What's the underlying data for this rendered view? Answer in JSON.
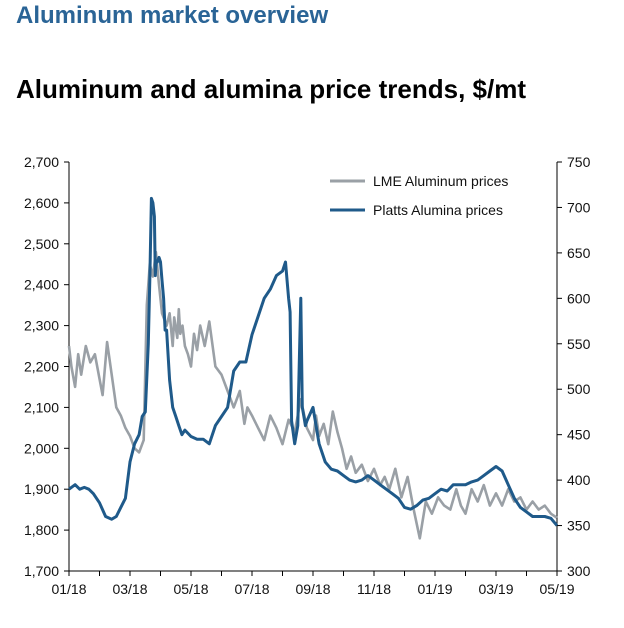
{
  "header": {
    "section_title": "Aluminum market overview"
  },
  "chart_data": {
    "type": "line",
    "title": "Aluminum and alumina price trends, $/mt",
    "x_tick_labels": [
      "01/18",
      "03/18",
      "05/18",
      "07/18",
      "09/18",
      "11/18",
      "01/19",
      "03/19",
      "05/19"
    ],
    "y_left": {
      "ylim": [
        1700,
        2700
      ],
      "ticks": [
        1700,
        1800,
        1900,
        2000,
        2100,
        2200,
        2300,
        2400,
        2500,
        2600,
        2700
      ],
      "tick_labels": [
        "1,700",
        "1,800",
        "1,900",
        "2,000",
        "2,100",
        "2,200",
        "2,300",
        "2,400",
        "2,500",
        "2,600",
        "2,700"
      ]
    },
    "y_right": {
      "ylim": [
        300,
        750
      ],
      "ticks": [
        300,
        350,
        400,
        450,
        500,
        550,
        600,
        650,
        700,
        750
      ],
      "tick_labels": [
        "300",
        "350",
        "400",
        "450",
        "500",
        "550",
        "600",
        "650",
        "700",
        "750"
      ]
    },
    "legend_position": "top-right",
    "grid": false,
    "colors": {
      "aluminum": "#9aa0a6",
      "alumina": "#1f5a8a"
    },
    "series": [
      {
        "name": "LME Aluminum prices",
        "axis": "left",
        "x": [
          0,
          0.08,
          0.2,
          0.3,
          0.4,
          0.55,
          0.7,
          0.85,
          1.0,
          1.1,
          1.25,
          1.4,
          1.55,
          1.7,
          1.85,
          2.0,
          2.15,
          2.3,
          2.45,
          2.55,
          2.65,
          2.75,
          2.85,
          2.95,
          3.05,
          3.2,
          3.3,
          3.4,
          3.45,
          3.55,
          3.6,
          3.65,
          3.72,
          3.8,
          3.9,
          4.0,
          4.1,
          4.2,
          4.3,
          4.45,
          4.6,
          4.8,
          5.0,
          5.2,
          5.4,
          5.6,
          5.75,
          5.85,
          6.0,
          6.2,
          6.4,
          6.6,
          6.8,
          7.0,
          7.2,
          7.4,
          7.6,
          7.8,
          8.0,
          8.1,
          8.2,
          8.35,
          8.5,
          8.65,
          8.8,
          8.95,
          9.1,
          9.25,
          9.4,
          9.6,
          9.8,
          10.0,
          10.2,
          10.35,
          10.5,
          10.7,
          10.9,
          11.1,
          11.3,
          11.5,
          11.7,
          11.9,
          12.1,
          12.3,
          12.5,
          12.7,
          12.85,
          13.0,
          13.2,
          13.4,
          13.6,
          13.8,
          14.0,
          14.2,
          14.4,
          14.6,
          14.8,
          15.0,
          15.2,
          15.4,
          15.6,
          15.8,
          16.0
        ],
        "y": [
          2250,
          2200,
          2150,
          2230,
          2180,
          2250,
          2210,
          2230,
          2170,
          2130,
          2260,
          2180,
          2100,
          2080,
          2050,
          2030,
          2000,
          1990,
          2020,
          2350,
          2450,
          2420,
          2480,
          2400,
          2330,
          2300,
          2330,
          2250,
          2320,
          2270,
          2340,
          2280,
          2300,
          2250,
          2230,
          2200,
          2280,
          2240,
          2300,
          2250,
          2310,
          2200,
          2180,
          2140,
          2100,
          2140,
          2060,
          2100,
          2080,
          2050,
          2020,
          2080,
          2050,
          2010,
          2070,
          2040,
          2120,
          2050,
          2020,
          2080,
          2030,
          2060,
          2010,
          2090,
          2040,
          2000,
          1950,
          1980,
          1940,
          1960,
          1920,
          1950,
          1910,
          1930,
          1900,
          1950,
          1880,
          1930,
          1850,
          1780,
          1870,
          1840,
          1880,
          1860,
          1850,
          1900,
          1860,
          1840,
          1900,
          1870,
          1910,
          1860,
          1890,
          1860,
          1900,
          1870,
          1880,
          1850,
          1870,
          1850,
          1860,
          1840,
          1830
        ]
      },
      {
        "name": "Platts Alumina prices",
        "axis": "right",
        "x": [
          0,
          0.2,
          0.35,
          0.5,
          0.65,
          0.8,
          1.0,
          1.2,
          1.4,
          1.55,
          1.7,
          1.85,
          2.0,
          2.15,
          2.3,
          2.4,
          2.5,
          2.6,
          2.65,
          2.7,
          2.75,
          2.8,
          2.83,
          2.86,
          2.9,
          2.95,
          3.0,
          3.05,
          3.1,
          3.15,
          3.2,
          3.3,
          3.4,
          3.5,
          3.6,
          3.7,
          3.8,
          4.0,
          4.2,
          4.4,
          4.6,
          4.8,
          5.0,
          5.2,
          5.4,
          5.6,
          5.8,
          6.0,
          6.2,
          6.4,
          6.6,
          6.8,
          7.0,
          7.1,
          7.2,
          7.25,
          7.3,
          7.4,
          7.5,
          7.6,
          7.65,
          7.7,
          7.75,
          7.8,
          8.0,
          8.2,
          8.4,
          8.6,
          8.8,
          9.0,
          9.2,
          9.4,
          9.6,
          9.8,
          10.0,
          10.2,
          10.4,
          10.6,
          10.8,
          11.0,
          11.2,
          11.4,
          11.6,
          11.8,
          12.0,
          12.2,
          12.4,
          12.6,
          12.8,
          13.0,
          13.2,
          13.4,
          13.6,
          13.8,
          14.0,
          14.2,
          14.4,
          14.6,
          14.8,
          15.0,
          15.2,
          15.4,
          15.6,
          15.8,
          16.0
        ],
        "y": [
          390,
          395,
          390,
          392,
          390,
          385,
          375,
          360,
          357,
          360,
          370,
          380,
          420,
          440,
          450,
          470,
          475,
          550,
          620,
          710,
          705,
          690,
          625,
          640,
          640,
          645,
          640,
          620,
          600,
          565,
          565,
          510,
          480,
          470,
          460,
          450,
          455,
          448,
          445,
          445,
          440,
          460,
          470,
          480,
          520,
          530,
          530,
          560,
          580,
          600,
          610,
          625,
          630,
          640,
          600,
          585,
          465,
          440,
          460,
          600,
          480,
          470,
          460,
          465,
          480,
          440,
          420,
          412,
          410,
          405,
          400,
          398,
          400,
          405,
          400,
          395,
          390,
          385,
          380,
          370,
          368,
          372,
          378,
          380,
          385,
          390,
          388,
          395,
          395,
          395,
          398,
          400,
          405,
          410,
          415,
          410,
          395,
          380,
          370,
          365,
          360,
          360,
          360,
          358,
          350
        ]
      }
    ]
  }
}
